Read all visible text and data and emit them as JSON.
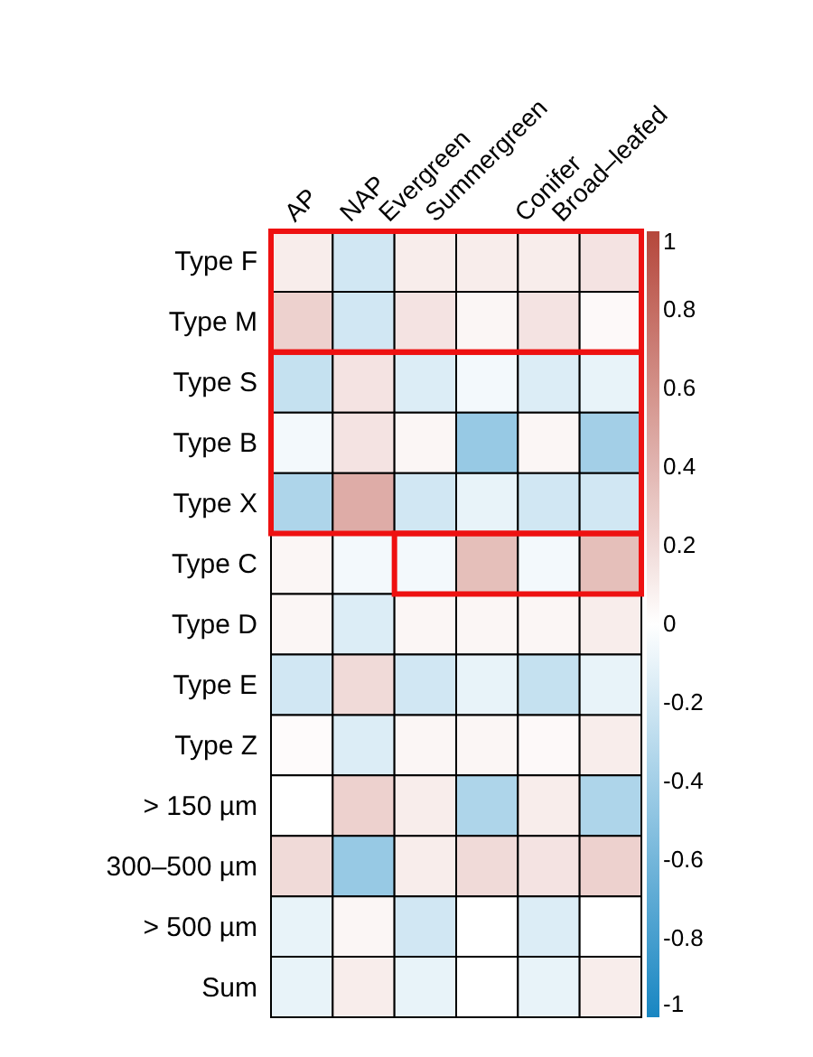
{
  "chart_data": {
    "type": "heatmap",
    "categories": [
      "AP",
      "NAP",
      "Evergreen",
      "Summergreen",
      "Conifer",
      "Broad–leafed"
    ],
    "y_categories": [
      "Type F",
      "Type M",
      "Type S",
      "Type B",
      "Type X",
      "Type C",
      "Type D",
      "Type E",
      "Type Z",
      "> 150 µm",
      "300–500 µm",
      "> 500 µm",
      "Sum"
    ],
    "cells": [
      [
        0.1,
        -0.2,
        0.1,
        0.1,
        0.1,
        0.15
      ],
      [
        0.25,
        -0.2,
        0.15,
        0.05,
        0.15,
        0.03
      ],
      [
        -0.25,
        0.15,
        -0.15,
        -0.05,
        -0.15,
        -0.1
      ],
      [
        -0.05,
        0.15,
        0.05,
        -0.45,
        0.05,
        -0.4
      ],
      [
        -0.35,
        0.45,
        -0.2,
        -0.1,
        -0.2,
        -0.2
      ],
      [
        0.05,
        -0.05,
        -0.05,
        0.35,
        -0.05,
        0.35
      ],
      [
        0.05,
        -0.15,
        0.05,
        0.05,
        0.05,
        0.1
      ],
      [
        -0.2,
        0.2,
        -0.2,
        -0.1,
        -0.25,
        -0.1
      ],
      [
        0.02,
        -0.15,
        0.05,
        0.05,
        0.03,
        0.1
      ],
      [
        0,
        0.25,
        0.1,
        -0.35,
        0.1,
        -0.35
      ],
      [
        0.2,
        -0.45,
        0.1,
        0.2,
        0.15,
        0.25
      ],
      [
        -0.1,
        0.05,
        -0.2,
        0,
        -0.15,
        0
      ],
      [
        -0.1,
        0.1,
        -0.1,
        0,
        -0.1,
        0.1
      ]
    ],
    "clim": [
      -1,
      1
    ],
    "cticks": [
      -1,
      -0.8,
      -0.6,
      -0.4,
      -0.2,
      0,
      0.2,
      0.4,
      0.6,
      0.8,
      1
    ]
  }
}
